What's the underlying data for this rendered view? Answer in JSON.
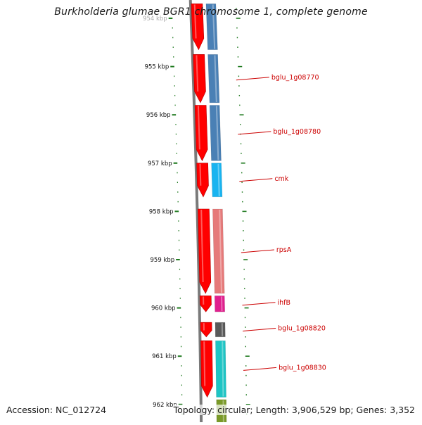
{
  "map": {
    "title": "Burkholderia glumae BGR1 chromosome 1, complete genome",
    "accession": "Accession: NC_012724",
    "summary": "Topology: circular; Length: 3,906,529 bp; Genes: 3,352"
  },
  "colors": {
    "backbone": "#7a7a7a",
    "cds": "#ff0000",
    "tick": "#1f7a1f",
    "gene_label": "#cc0000",
    "tick_label": "#111111"
  },
  "chart_data": {
    "type": "genome-map",
    "units": "kbp",
    "axis_range_kbp": [
      954,
      962
    ],
    "ticks": [
      {
        "kbp": 954,
        "label": "954 kbp"
      },
      {
        "kbp": 955,
        "label": "955 kbp"
      },
      {
        "kbp": 956,
        "label": "956 kbp"
      },
      {
        "kbp": 957,
        "label": "957 kbp"
      },
      {
        "kbp": 958,
        "label": "958 kbp"
      },
      {
        "kbp": 959,
        "label": "959 kbp"
      },
      {
        "kbp": 960,
        "label": "960 kbp"
      },
      {
        "kbp": 961,
        "label": "961 kbp"
      },
      {
        "kbp": 962,
        "label": "962 kbp"
      }
    ],
    "cds": [
      {
        "start": 953.7,
        "end": 954.65,
        "strand": "+"
      },
      {
        "start": 954.75,
        "end": 955.75,
        "strand": "+"
      },
      {
        "start": 955.8,
        "end": 956.95,
        "strand": "+"
      },
      {
        "start": 957.0,
        "end": 957.7,
        "strand": "+"
      },
      {
        "start": 957.95,
        "end": 959.7,
        "strand": "+"
      },
      {
        "start": 959.75,
        "end": 960.08,
        "strand": "+"
      },
      {
        "start": 960.3,
        "end": 960.6,
        "strand": "+"
      },
      {
        "start": 960.68,
        "end": 961.85,
        "strand": "+"
      }
    ],
    "genes": [
      {
        "start": 953.7,
        "end": 954.65,
        "color": "#4a80b5",
        "name": ""
      },
      {
        "start": 954.75,
        "end": 955.75,
        "color": "#4a80b5",
        "name": "bglu_1g08770"
      },
      {
        "start": 955.8,
        "end": 956.95,
        "color": "#4a80b5",
        "name": "bglu_1g08780"
      },
      {
        "start": 957.0,
        "end": 957.7,
        "color": "#19b4f0",
        "name": "cmk"
      },
      {
        "start": 957.95,
        "end": 959.7,
        "color": "#e67a7a",
        "name": "rpsA"
      },
      {
        "start": 959.75,
        "end": 960.08,
        "color": "#e0208e",
        "name": "ihfB"
      },
      {
        "start": 960.3,
        "end": 960.6,
        "color": "#5a5a5a",
        "name": "bglu_1g08820"
      },
      {
        "start": 960.68,
        "end": 961.85,
        "color": "#1ec4c4",
        "name": "bglu_1g08830"
      },
      {
        "start": 961.9,
        "end": 962.4,
        "color": "#7a9a28",
        "name": ""
      }
    ]
  }
}
